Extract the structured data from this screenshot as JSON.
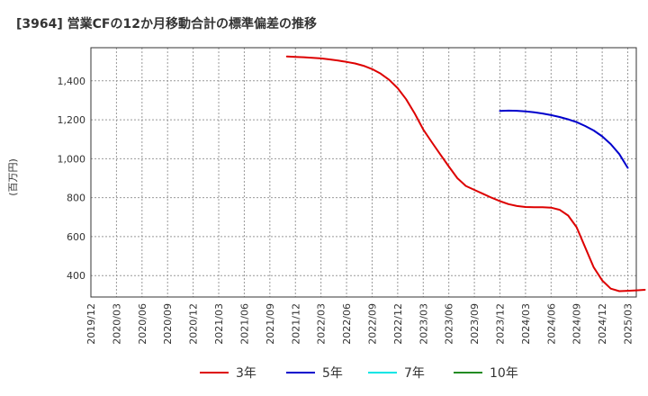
{
  "chart_data": {
    "type": "line",
    "title": "[3964]  営業CFの12か月移動合計の標準偏差の推移",
    "ylabel": "(百万円)",
    "xlabel": "",
    "ylim": [
      290,
      1570
    ],
    "yticks": [
      400,
      600,
      800,
      1000,
      1200,
      1400
    ],
    "ytick_labels": [
      "400",
      "600",
      "800",
      "1,000",
      "1,200",
      "1,400"
    ],
    "x_tick_labels": [
      "2019/12",
      "2020/03",
      "2020/06",
      "2020/09",
      "2020/12",
      "2021/03",
      "2021/06",
      "2021/09",
      "2021/12",
      "2022/03",
      "2022/06",
      "2022/09",
      "2022/12",
      "2023/03",
      "2023/06",
      "2023/09",
      "2023/12",
      "2024/03",
      "2024/06",
      "2024/09",
      "2024/12",
      "2025/03"
    ],
    "grid": true,
    "legend_position": "bottom",
    "series": [
      {
        "name": "3年",
        "color": "#dd0000",
        "start_month_index": 23,
        "values": [
          1525,
          1523,
          1521,
          1518,
          1515,
          1510,
          1504,
          1497,
          1489,
          1477,
          1460,
          1437,
          1405,
          1362,
          1305,
          1232,
          1150,
          1085,
          1022,
          960,
          900,
          860,
          840,
          820,
          800,
          782,
          767,
          757,
          752,
          751,
          751,
          749,
          738,
          708,
          648,
          545,
          442,
          375,
          333,
          320,
          322,
          324,
          327
        ]
      },
      {
        "name": "5年",
        "color": "#0000cc",
        "start_month_index": 48,
        "values": [
          1245,
          1247,
          1246,
          1243,
          1238,
          1232,
          1224,
          1214,
          1202,
          1188,
          1168,
          1145,
          1115,
          1075,
          1024,
          953
        ]
      },
      {
        "name": "7年",
        "color": "#00e5e5",
        "start_month_index": null,
        "values": []
      },
      {
        "name": "10年",
        "color": "#228B22",
        "start_month_index": null,
        "values": []
      }
    ]
  }
}
